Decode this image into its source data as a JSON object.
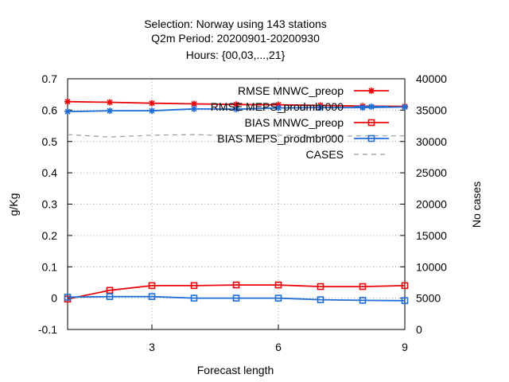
{
  "chart_data": {
    "type": "line",
    "title_lines": [
      "Selection: Norway using   143 stations",
      "Q2m   Period: 20200901-20200930",
      "Hours: {00,03,...,21}"
    ],
    "xlabel": "Forecast length",
    "ylabel": "g/Kg",
    "y2label": "No cases",
    "xlim": [
      1,
      9
    ],
    "ylim": [
      -0.1,
      0.7
    ],
    "y2lim": [
      0,
      40000
    ],
    "x_ticks": [
      3,
      6,
      9
    ],
    "y_ticks": [
      -0.1,
      0,
      0.1,
      0.2,
      0.3,
      0.4,
      0.5,
      0.6,
      0.7
    ],
    "y_tick_labels": [
      "-0.1",
      "0",
      "0.1",
      "0.2",
      "0.3",
      "0.4",
      "0.5",
      "0.6",
      "0.7"
    ],
    "y2_ticks": [
      0,
      5000,
      10000,
      15000,
      20000,
      25000,
      30000,
      35000,
      40000
    ],
    "grid": true,
    "legend_position": "top-right",
    "x": [
      1,
      2,
      3,
      4,
      5,
      6,
      7,
      8,
      9
    ],
    "series": [
      {
        "name": "RMSE MNWC_preop",
        "axis": "left",
        "color": "#e8060a",
        "marker": "star",
        "dashed": false,
        "values": [
          0.627,
          0.625,
          0.622,
          0.62,
          0.618,
          0.617,
          0.615,
          0.613,
          0.612
        ]
      },
      {
        "name": "RMSE MEPS_prodmbr000",
        "axis": "left",
        "color": "#1e6ed6",
        "marker": "star",
        "dashed": false,
        "values": [
          0.595,
          0.598,
          0.598,
          0.604,
          0.603,
          0.607,
          0.608,
          0.608,
          0.61
        ]
      },
      {
        "name": "BIAS MNWC_preop",
        "axis": "left",
        "color": "#e8060a",
        "marker": "square",
        "dashed": false,
        "values": [
          -0.003,
          0.025,
          0.04,
          0.04,
          0.042,
          0.042,
          0.037,
          0.037,
          0.04
        ]
      },
      {
        "name": "BIAS MEPS_prodmbr000",
        "axis": "left",
        "color": "#1e6ed6",
        "marker": "square",
        "dashed": false,
        "values": [
          0.003,
          0.005,
          0.005,
          0.0,
          0.0,
          0.0,
          -0.005,
          -0.007,
          -0.008
        ]
      },
      {
        "name": "CASES",
        "axis": "right",
        "color": "#9a9a9a",
        "marker": "none",
        "dashed": true,
        "values": [
          31100,
          30700,
          31000,
          31100,
          30900,
          31000,
          30800,
          30900,
          30900
        ]
      }
    ]
  }
}
